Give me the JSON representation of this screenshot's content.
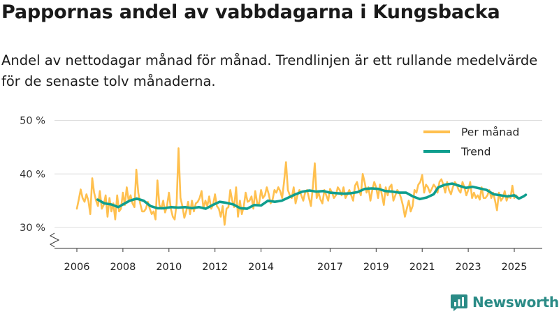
{
  "brand": {
    "name": "Newsworthy",
    "color": "#2a8b86"
  },
  "chart_data": {
    "type": "line",
    "title": "Pappornas andel av vabbdagarna i Kungsbacka",
    "subtitle": "Andel av nettodagar månad för månad. Trendlinjen är ett rullande medelvärde för de senaste tolv månaderna.",
    "xlabel": "",
    "ylabel": "",
    "ylim": [
      27,
      50
    ],
    "xlim": [
      2005.45,
      2026.2
    ],
    "y_ticks": [
      {
        "value": 30,
        "label": "30 %"
      },
      {
        "value": 40,
        "label": "40 %"
      },
      {
        "value": 50,
        "label": "50 %"
      }
    ],
    "x_ticks": [
      {
        "value": 2006,
        "label": "2006"
      },
      {
        "value": 2008,
        "label": "2008"
      },
      {
        "value": 2010,
        "label": "2010"
      },
      {
        "value": 2012,
        "label": "2012"
      },
      {
        "value": 2014,
        "label": "2014"
      },
      {
        "value": 2017,
        "label": "2017"
      },
      {
        "value": 2019,
        "label": "2019"
      },
      {
        "value": 2021,
        "label": "2021"
      },
      {
        "value": 2023,
        "label": "2023"
      },
      {
        "value": 2025,
        "label": "2025"
      }
    ],
    "grid": true,
    "legend_position": "top-right",
    "series": [
      {
        "name": "Per månad",
        "color": "#ffc04f",
        "x_start": 2006.0,
        "x_step": 0.0833333,
        "values": [
          33.5,
          35.2,
          37.1,
          35.5,
          34.8,
          36.2,
          35.0,
          32.5,
          39.2,
          36.5,
          35.0,
          34.0,
          36.8,
          33.5,
          34.2,
          36.0,
          32.0,
          35.5,
          33.0,
          34.5,
          31.5,
          36.0,
          33.0,
          33.5,
          36.5,
          34.2,
          37.5,
          35.0,
          36.0,
          34.5,
          33.8,
          40.8,
          36.5,
          34.5,
          33.0,
          33.0,
          33.5,
          34.8,
          33.5,
          32.5,
          33.0,
          31.5,
          38.8,
          34.2,
          33.5,
          35.0,
          32.8,
          34.0,
          36.5,
          33.5,
          32.0,
          31.5,
          34.5,
          44.8,
          35.5,
          34.0,
          31.8,
          33.0,
          34.8,
          32.5,
          35.0,
          33.0,
          34.5,
          34.8,
          35.5,
          36.8,
          33.5,
          35.0,
          34.0,
          35.8,
          33.5,
          34.2,
          36.2,
          34.0,
          33.5,
          32.0,
          34.0,
          30.5,
          33.5,
          33.8,
          37.0,
          35.0,
          33.8,
          37.5,
          32.0,
          35.0,
          32.5,
          34.0,
          36.5,
          34.8,
          35.0,
          35.8,
          33.5,
          36.8,
          34.5,
          34.5,
          37.0,
          35.5,
          36.0,
          37.5,
          36.2,
          34.5,
          35.2,
          37.0,
          36.5,
          37.5,
          36.8,
          35.5,
          38.5,
          42.2,
          37.0,
          36.0,
          35.5,
          37.5,
          34.5,
          36.0,
          37.0,
          36.0,
          35.0,
          36.5,
          37.0,
          35.5,
          34.0,
          37.5,
          42.0,
          35.5,
          36.5,
          35.2,
          34.5,
          37.0,
          36.0,
          35.0,
          37.2,
          36.5,
          35.5,
          36.0,
          37.5,
          37.0,
          36.0,
          37.5,
          35.5,
          36.2,
          37.0,
          36.0,
          35.0,
          37.8,
          38.5,
          37.0,
          36.0,
          40.0,
          38.5,
          36.5,
          37.5,
          35.0,
          37.0,
          38.5,
          37.5,
          35.5,
          38.0,
          36.0,
          34.2,
          37.5,
          36.0,
          37.5,
          38.0,
          35.0,
          36.0,
          37.0,
          36.5,
          35.5,
          34.0,
          32.0,
          33.5,
          35.0,
          33.0,
          34.0,
          37.0,
          36.5,
          38.0,
          38.5,
          39.8,
          36.5,
          38.0,
          37.5,
          36.5,
          37.2,
          38.0,
          37.5,
          36.5,
          38.5,
          39.0,
          38.0,
          36.5,
          38.5,
          37.0,
          36.2,
          37.5,
          38.5,
          38.0,
          37.0,
          36.5,
          38.5,
          37.5,
          36.0,
          37.0,
          38.5,
          35.5,
          36.5,
          35.5,
          36.0,
          35.2,
          37.5,
          35.5,
          35.5,
          36.0,
          37.0,
          35.5,
          36.5,
          35.0,
          33.2,
          36.5,
          35.0,
          35.5,
          36.8,
          35.0,
          36.0,
          35.5,
          37.8,
          35.5,
          36.0,
          35.5
        ]
      },
      {
        "name": "Trend",
        "color": "#0f9e8e",
        "points": [
          [
            2006.9,
            35.2
          ],
          [
            2007.2,
            34.5
          ],
          [
            2007.5,
            34.3
          ],
          [
            2007.8,
            33.8
          ],
          [
            2008.0,
            34.3
          ],
          [
            2008.3,
            35.0
          ],
          [
            2008.6,
            35.4
          ],
          [
            2008.9,
            35.0
          ],
          [
            2009.2,
            34.0
          ],
          [
            2009.5,
            33.6
          ],
          [
            2009.8,
            33.6
          ],
          [
            2010.1,
            33.8
          ],
          [
            2010.4,
            33.7
          ],
          [
            2010.7,
            33.8
          ],
          [
            2011.0,
            33.6
          ],
          [
            2011.3,
            33.8
          ],
          [
            2011.6,
            33.5
          ],
          [
            2011.9,
            34.2
          ],
          [
            2012.2,
            34.8
          ],
          [
            2012.5,
            34.6
          ],
          [
            2012.8,
            34.3
          ],
          [
            2013.1,
            33.6
          ],
          [
            2013.4,
            33.5
          ],
          [
            2013.7,
            34.2
          ],
          [
            2014.0,
            34.1
          ],
          [
            2014.3,
            35.0
          ],
          [
            2014.6,
            34.8
          ],
          [
            2014.9,
            35.0
          ],
          [
            2015.2,
            35.6
          ],
          [
            2015.5,
            36.2
          ],
          [
            2015.8,
            36.7
          ],
          [
            2016.1,
            36.9
          ],
          [
            2016.4,
            36.7
          ],
          [
            2016.7,
            36.8
          ],
          [
            2017.0,
            36.5
          ],
          [
            2017.3,
            36.4
          ],
          [
            2017.6,
            36.3
          ],
          [
            2017.9,
            36.4
          ],
          [
            2018.2,
            36.6
          ],
          [
            2018.5,
            37.2
          ],
          [
            2018.8,
            37.3
          ],
          [
            2019.1,
            37.2
          ],
          [
            2019.4,
            36.8
          ],
          [
            2019.7,
            36.7
          ],
          [
            2020.0,
            36.5
          ],
          [
            2020.3,
            36.5
          ],
          [
            2020.6,
            35.8
          ],
          [
            2020.9,
            35.3
          ],
          [
            2021.2,
            35.6
          ],
          [
            2021.5,
            36.2
          ],
          [
            2021.7,
            37.5
          ],
          [
            2022.0,
            38.0
          ],
          [
            2022.3,
            38.2
          ],
          [
            2022.6,
            37.8
          ],
          [
            2022.9,
            37.4
          ],
          [
            2023.2,
            37.6
          ],
          [
            2023.5,
            37.3
          ],
          [
            2023.8,
            37.0
          ],
          [
            2024.1,
            36.2
          ],
          [
            2024.4,
            36.0
          ],
          [
            2024.7,
            35.8
          ],
          [
            2025.0,
            36.0
          ],
          [
            2025.2,
            35.4
          ],
          [
            2025.4,
            35.8
          ],
          [
            2025.5,
            36.1
          ]
        ]
      }
    ]
  }
}
